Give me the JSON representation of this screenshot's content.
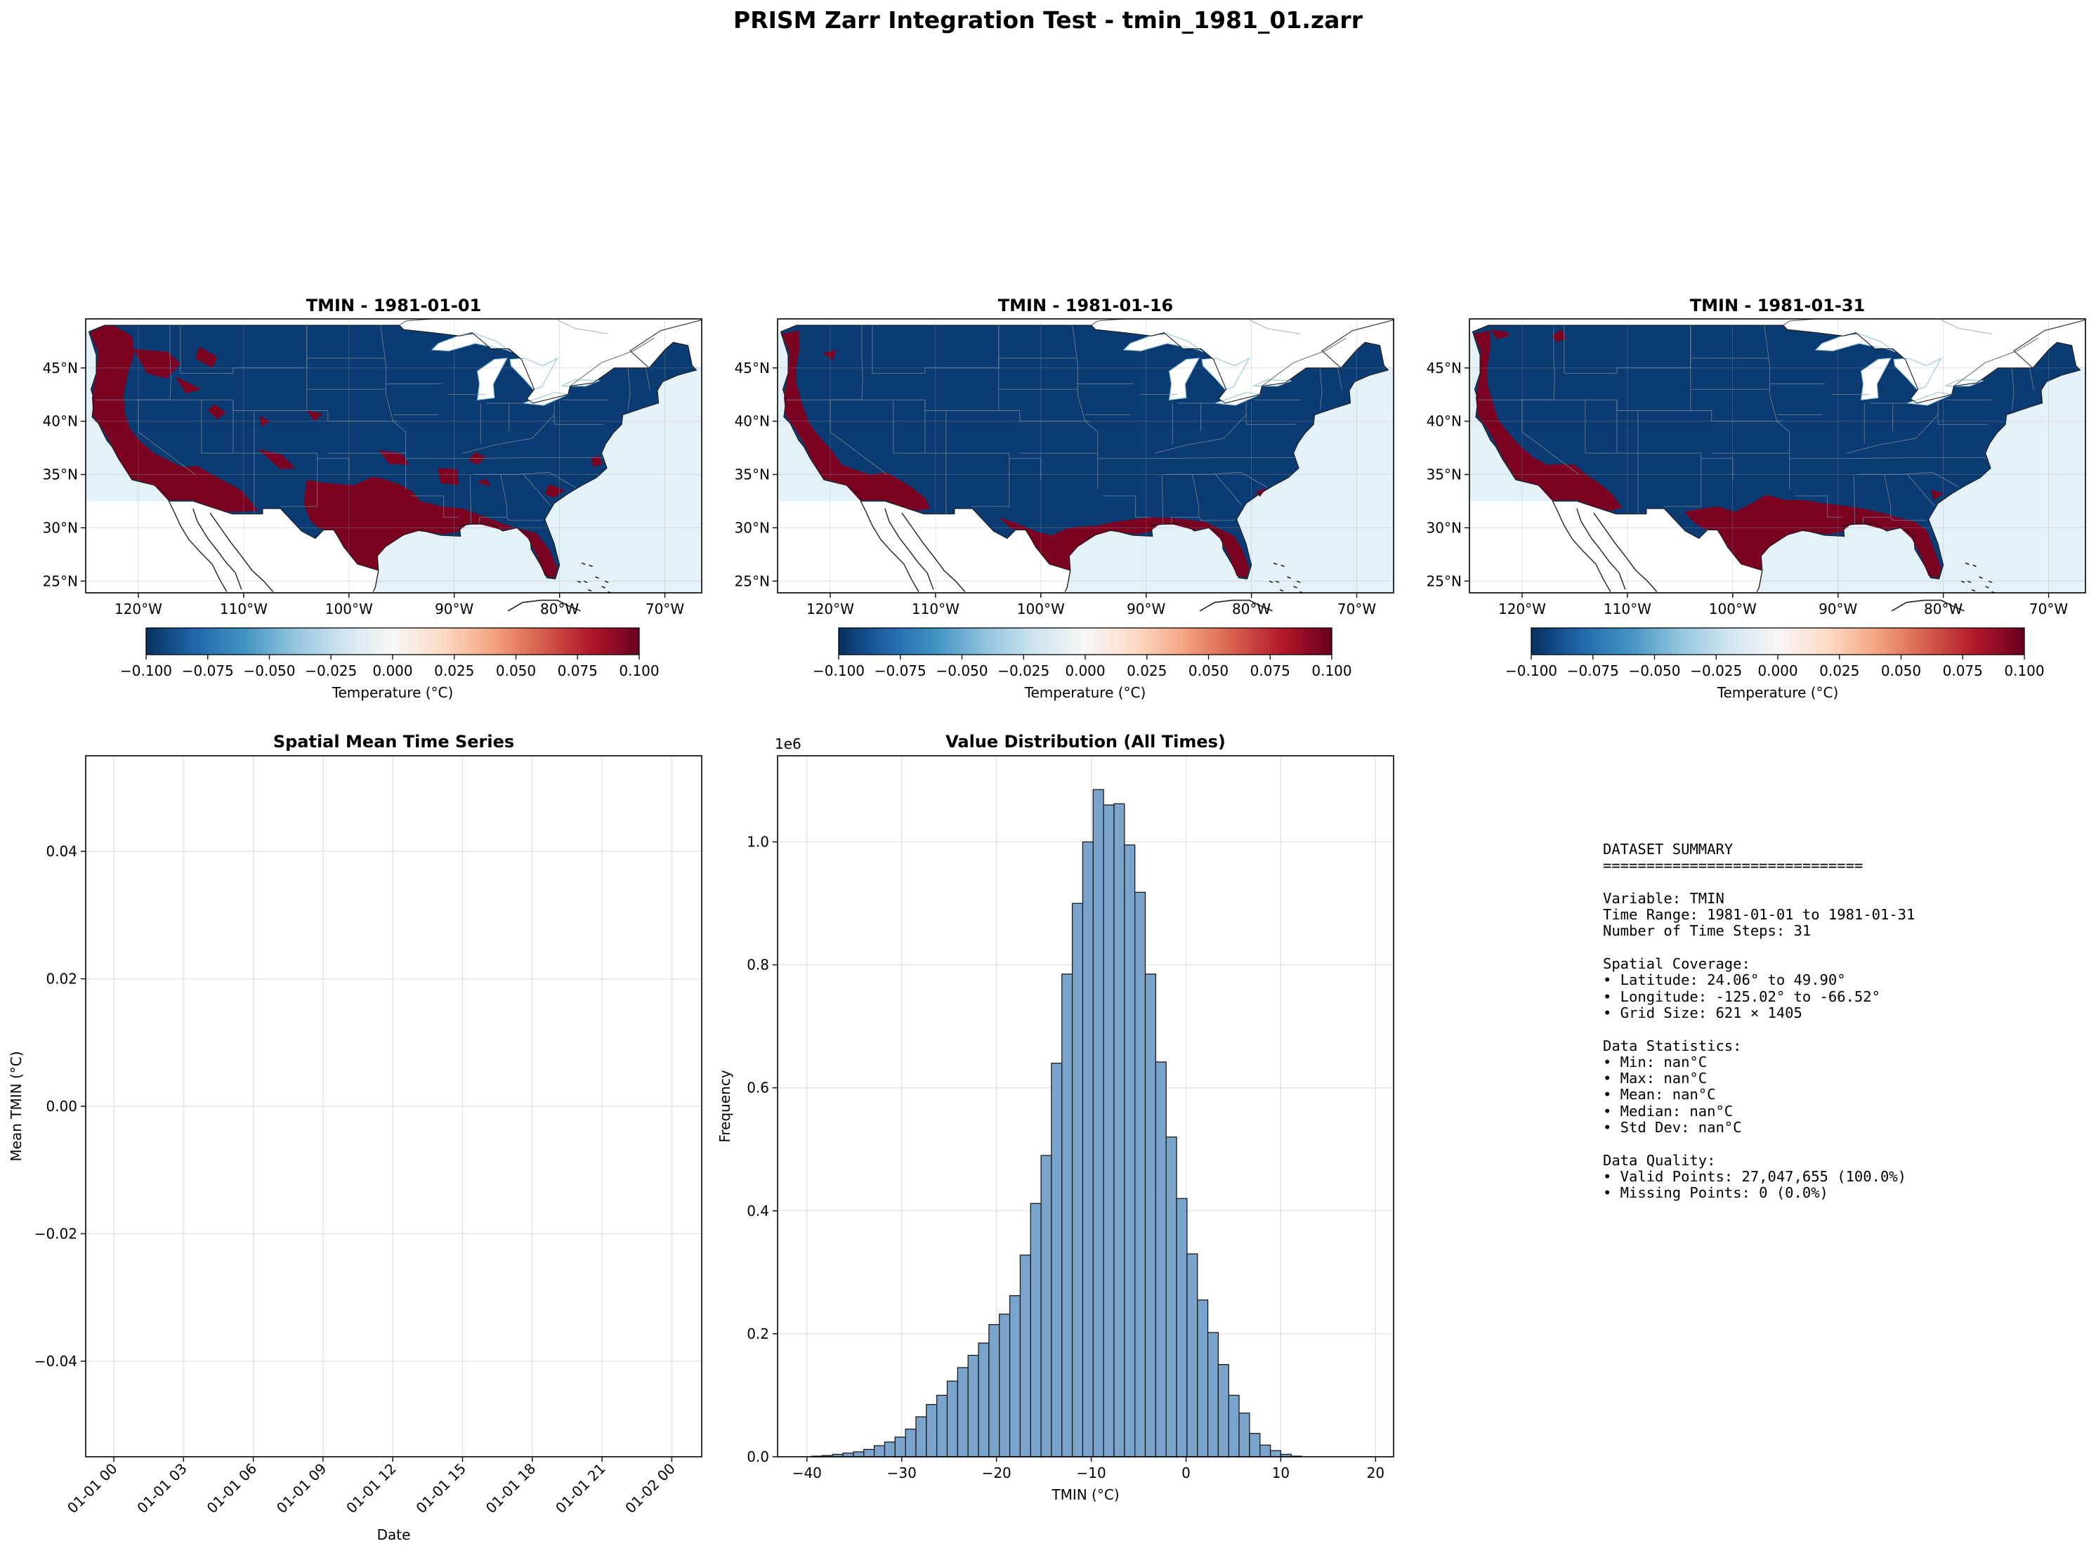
{
  "suptitle": "PRISM Zarr Integration Test - tmin_1981_01.zarr",
  "colors": {
    "cold": "#0a3b72",
    "warm": "#7b0220",
    "ocean": "#e4f2f7",
    "lake": "#c5e1ef",
    "histogram_fill": "#7ba4cd",
    "grid": "#e1e1e1",
    "state_lines": "#7f8d9c"
  },
  "maps": [
    {
      "title": "TMIN - 1981-01-01",
      "warm_regions": [
        "California and Pacific coast",
        "Southwest desert",
        "Texas and southern plains",
        "Central valleys",
        "Florida and Gulf coast"
      ]
    },
    {
      "title": "TMIN - 1981-01-16",
      "warm_regions": [
        "Pacific coast",
        "Southern California and Arizona",
        "Texas Gulf coast",
        "Florida"
      ]
    },
    {
      "title": "TMIN - 1981-01-31",
      "warm_regions": [
        "Pacific coast",
        "Southwest",
        "Texas and Gulf coast",
        "Florida"
      ]
    }
  ],
  "map_axes": {
    "lat_ticks": [
      "45°N",
      "40°N",
      "35°N",
      "30°N",
      "25°N"
    ],
    "lon_ticks": [
      "120°W",
      "110°W",
      "100°W",
      "90°W",
      "80°W",
      "70°W"
    ]
  },
  "colorbar": {
    "cmap": "RdBu_r",
    "ticks": [
      "−0.100",
      "−0.075",
      "−0.050",
      "−0.025",
      "0.000",
      "0.025",
      "0.050",
      "0.075",
      "0.100"
    ],
    "label": "Temperature (°C)"
  },
  "chart_data": [
    {
      "type": "line",
      "title": "Spatial Mean Time Series",
      "xlabel": "Date",
      "ylabel": "Mean TMIN (°C)",
      "x_ticks": [
        "01-01 00",
        "01-01 03",
        "01-01 06",
        "01-01 09",
        "01-01 12",
        "01-01 15",
        "01-01 18",
        "01-01 21",
        "01-02 00"
      ],
      "y_ticks": [
        0.04,
        0.02,
        0.0,
        -0.02,
        -0.04
      ],
      "y_tick_labels": [
        "0.04",
        "0.02",
        "0.00",
        "−0.02",
        "−0.04"
      ],
      "ylim": [
        -0.055,
        0.055
      ],
      "series": [],
      "grid": true
    },
    {
      "type": "bar",
      "title": "Value Distribution (All Times)",
      "xlabel": "TMIN (°C)",
      "ylabel": "Frequency",
      "y_multiplier": "1e6",
      "x_ticks": [
        -40,
        -30,
        -20,
        -10,
        0,
        10,
        20
      ],
      "x_tick_labels": [
        "−40",
        "−30",
        "−20",
        "−10",
        "0",
        "10",
        "20"
      ],
      "y_ticks": [
        0.0,
        0.2,
        0.4,
        0.6,
        0.8,
        1.0
      ],
      "y_tick_labels": [
        "0.0",
        "0.2",
        "0.4",
        "0.6",
        "0.8",
        "1.0"
      ],
      "xlim": [
        -43.1,
        21.9
      ],
      "ylim": [
        0,
        1.14
      ],
      "bins": {
        "edges_start": -39.5,
        "width": 1.1,
        "counts": [
          0.001,
          0.002,
          0.004,
          0.006,
          0.008,
          0.012,
          0.018,
          0.024,
          0.032,
          0.045,
          0.065,
          0.085,
          0.1,
          0.123,
          0.145,
          0.165,
          0.185,
          0.215,
          0.232,
          0.262,
          0.328,
          0.412,
          0.49,
          0.64,
          0.785,
          0.9,
          1.0,
          1.085,
          1.06,
          1.062,
          0.995,
          0.918,
          0.785,
          0.642,
          0.52,
          0.42,
          0.33,
          0.255,
          0.202,
          0.15,
          0.1,
          0.071,
          0.038,
          0.019,
          0.01,
          0.004,
          0.001
        ]
      },
      "grid": true
    }
  ],
  "summary": {
    "lines": [
      "DATASET SUMMARY",
      "==============================",
      "",
      "Variable: TMIN",
      "Time Range: 1981-01-01 to 1981-01-31",
      "Number of Time Steps: 31",
      "",
      "Spatial Coverage:",
      "• Latitude: 24.06° to 49.90°",
      "• Longitude: -125.02° to -66.52°",
      "• Grid Size: 621 × 1405",
      "",
      "Data Statistics:",
      "• Min: nan°C",
      "• Max: nan°C",
      "• Mean: nan°C",
      "• Median: nan°C",
      "• Std Dev: nan°C",
      "",
      "Data Quality:",
      "• Valid Points: 27,047,655 (100.0%)",
      "• Missing Points: 0 (0.0%)"
    ]
  }
}
